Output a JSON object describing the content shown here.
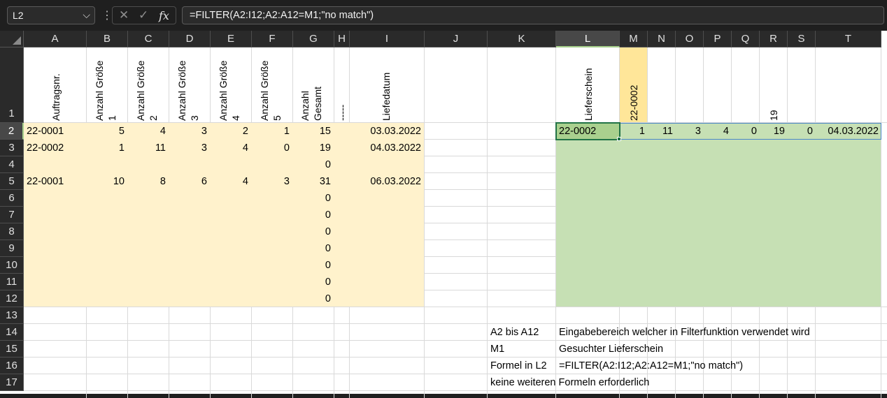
{
  "formula_bar": {
    "name_box": "L2",
    "name_box_icon": "chevron-down-icon",
    "cancel_icon": "close-icon",
    "enter_icon": "checkmark-icon",
    "fx_label": "fx",
    "formula": "=FILTER(A2:I12;A2:A12=M1;\"no match\")"
  },
  "columns": [
    "A",
    "B",
    "C",
    "D",
    "E",
    "F",
    "G",
    "H",
    "I",
    "J",
    "K",
    "L",
    "M",
    "N",
    "O",
    "P",
    "Q",
    "R",
    "S",
    "T"
  ],
  "selected_column": "L",
  "rows": [
    "1",
    "2",
    "3",
    "4",
    "5",
    "6",
    "7",
    "8",
    "9",
    "10",
    "11",
    "12",
    "13",
    "14",
    "15",
    "16",
    "17"
  ],
  "selected_row": "2",
  "header_row": {
    "A": "Auftragsnr.",
    "B": [
      "Anzahl Größe",
      "1"
    ],
    "C": [
      "Anzahl Größe",
      "2"
    ],
    "D": [
      "Anzahl Größe",
      "3"
    ],
    "E": [
      "Anzahl Größe",
      "4"
    ],
    "F": [
      "Anzahl Größe",
      "5"
    ],
    "G": [
      "Anzahl",
      "Gesamt"
    ],
    "H": "-----",
    "I": "Liefedatum",
    "L": "Lieferschein",
    "M": "22-0002",
    "R": "19"
  },
  "data_rows": [
    {
      "A": "22-0001",
      "B": "5",
      "C": "4",
      "D": "3",
      "E": "2",
      "F": "1",
      "G": "15",
      "I": "03.03.2022"
    },
    {
      "A": "22-0002",
      "B": "1",
      "C": "11",
      "D": "3",
      "E": "4",
      "F": "0",
      "G": "19",
      "I": "04.03.2022"
    },
    {
      "A": "",
      "B": "",
      "C": "",
      "D": "",
      "E": "",
      "F": "",
      "G": "0",
      "I": ""
    },
    {
      "A": "22-0001",
      "B": "10",
      "C": "8",
      "D": "6",
      "E": "4",
      "F": "3",
      "G": "31",
      "I": "06.03.2022"
    },
    {
      "A": "",
      "B": "",
      "C": "",
      "D": "",
      "E": "",
      "F": "",
      "G": "0",
      "I": ""
    },
    {
      "A": "",
      "B": "",
      "C": "",
      "D": "",
      "E": "",
      "F": "",
      "G": "0",
      "I": ""
    },
    {
      "A": "",
      "B": "",
      "C": "",
      "D": "",
      "E": "",
      "F": "",
      "G": "0",
      "I": ""
    },
    {
      "A": "",
      "B": "",
      "C": "",
      "D": "",
      "E": "",
      "F": "",
      "G": "0",
      "I": ""
    },
    {
      "A": "",
      "B": "",
      "C": "",
      "D": "",
      "E": "",
      "F": "",
      "G": "0",
      "I": ""
    },
    {
      "A": "",
      "B": "",
      "C": "",
      "D": "",
      "E": "",
      "F": "",
      "G": "0",
      "I": ""
    },
    {
      "A": "",
      "B": "",
      "C": "",
      "D": "",
      "E": "",
      "F": "",
      "G": "0",
      "I": ""
    }
  ],
  "filter_result": {
    "L": "22-0002",
    "M": "1",
    "N": "11",
    "O": "3",
    "P": "4",
    "Q": "0",
    "R": "19",
    "S": "0",
    "T": "04.03.2022"
  },
  "notes": [
    {
      "label": "A2 bis A12",
      "text": "Eingabebereich welcher in Filterfunktion verwendet wird"
    },
    {
      "label": "M1",
      "text": "Gesuchter Lieferschein"
    },
    {
      "label": "Formel in L2",
      "text": "=FILTER(A2:I12;A2:A12=M1;\"no match\")"
    },
    {
      "label": "keine weiteren Formeln erforderlich",
      "text": ""
    }
  ],
  "colors": {
    "input_fill": "#fff2cc",
    "output_fill": "#c6e0b4",
    "search_fill": "#ffe699",
    "active_cell_fill": "#a9d08e",
    "selection_border": "#217346"
  }
}
